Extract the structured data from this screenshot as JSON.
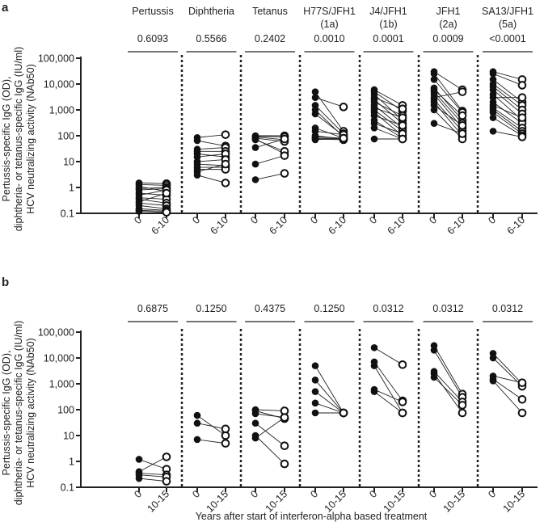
{
  "chart_data": [
    {
      "panel": "a",
      "type": "scatter",
      "ylabel": [
        "Pertussis-specific IgG (OD),",
        "diphtheria- or tetanus-specific IgG (IU/ml)",
        "HCV neutralizing activity (NAb50)"
      ],
      "yscale": "log",
      "ylim": [
        0.1,
        100000
      ],
      "yticks": [
        "100,000",
        "10,000",
        "1,000",
        "100",
        "10",
        "1",
        "0.1"
      ],
      "xticks": [
        "0",
        "6-10"
      ],
      "groups": [
        {
          "title": "Pertussis",
          "subtitle": "",
          "p": "0.6093",
          "pairs": [
            [
              1.5,
              1.4
            ],
            [
              1.3,
              1.2
            ],
            [
              1.1,
              0.7
            ],
            [
              0.9,
              1.0
            ],
            [
              0.8,
              0.9
            ],
            [
              0.6,
              0.5
            ],
            [
              0.5,
              0.8
            ],
            [
              0.4,
              0.35
            ],
            [
              0.35,
              0.25
            ],
            [
              0.28,
              0.6
            ],
            [
              0.25,
              0.2
            ],
            [
              0.2,
              0.15
            ],
            [
              0.15,
              0.13
            ],
            [
              0.13,
              0.12
            ],
            [
              0.12,
              0.11
            ]
          ]
        },
        {
          "title": "Diphtheria",
          "subtitle": "",
          "p": "0.5566",
          "pairs": [
            [
              85,
              110
            ],
            [
              65,
              40
            ],
            [
              30,
              35
            ],
            [
              25,
              25
            ],
            [
              20,
              15
            ],
            [
              15,
              20
            ],
            [
              10,
              12
            ],
            [
              8,
              7
            ],
            [
              6,
              6
            ],
            [
              5,
              5
            ],
            [
              4,
              8
            ],
            [
              3,
              1.5
            ]
          ]
        },
        {
          "title": "Tetanus",
          "subtitle": "",
          "p": "0.2402",
          "pairs": [
            [
              100,
              100
            ],
            [
              95,
              90
            ],
            [
              90,
              70
            ],
            [
              80,
              60
            ],
            [
              75,
              20
            ],
            [
              70,
              25
            ],
            [
              35,
              75
            ],
            [
              8,
              17
            ],
            [
              2,
              3.5
            ]
          ]
        },
        {
          "title": "H77S/JFH1",
          "subtitle": "(1a)",
          "p": "0.0010",
          "pairs": [
            [
              5000,
              150
            ],
            [
              3000,
              1300
            ],
            [
              1500,
              120
            ],
            [
              1000,
              90
            ],
            [
              700,
              100
            ],
            [
              200,
              80
            ],
            [
              150,
              110
            ],
            [
              100,
              75
            ],
            [
              90,
              80
            ],
            [
              80,
              75
            ],
            [
              75,
              70
            ],
            [
              70,
              80
            ]
          ]
        },
        {
          "title": "J4/JFH1",
          "subtitle": "(1b)",
          "p": "0.0001",
          "pairs": [
            [
              6000,
              1500
            ],
            [
              5000,
              900
            ],
            [
              4000,
              400
            ],
            [
              3000,
              1100
            ],
            [
              2500,
              300
            ],
            [
              2000,
              600
            ],
            [
              1500,
              200
            ],
            [
              1200,
              500
            ],
            [
              1000,
              150
            ],
            [
              800,
              100
            ],
            [
              600,
              250
            ],
            [
              400,
              80
            ],
            [
              300,
              120
            ],
            [
              200,
              75
            ],
            [
              75,
              75
            ]
          ]
        },
        {
          "title": "JFH1",
          "subtitle": "(2a)",
          "p": "0.0009",
          "pairs": [
            [
              30000,
              6000
            ],
            [
              25000,
              900
            ],
            [
              15000,
              800
            ],
            [
              7000,
              400
            ],
            [
              6000,
              600
            ],
            [
              5000,
              300
            ],
            [
              4000,
              200
            ],
            [
              3000,
              5000
            ],
            [
              2500,
              150
            ],
            [
              2000,
              100
            ],
            [
              1500,
              250
            ],
            [
              1000,
              75
            ],
            [
              300,
              120
            ]
          ]
        },
        {
          "title": "SA13/JFH1",
          "subtitle": "(5a)",
          "p": "<0.0001",
          "pairs": [
            [
              30000,
              15000
            ],
            [
              25000,
              9000
            ],
            [
              15000,
              2000
            ],
            [
              10000,
              1500
            ],
            [
              8000,
              1000
            ],
            [
              6000,
              700
            ],
            [
              4000,
              400
            ],
            [
              3000,
              3000
            ],
            [
              2000,
              300
            ],
            [
              1500,
              500
            ],
            [
              1200,
              200
            ],
            [
              1000,
              150
            ],
            [
              800,
              120
            ],
            [
              500,
              100
            ],
            [
              150,
              90
            ]
          ]
        }
      ]
    },
    {
      "panel": "b",
      "type": "scatter",
      "ylabel": [
        "Pertussis-specific IgG (OD),",
        "diphtheria- or tetanus-specific IgG (IU/ml)",
        "HCV neutralizing activity (NAb50)"
      ],
      "yscale": "log",
      "ylim": [
        0.1,
        100000
      ],
      "yticks": [
        "100,000",
        "10,000",
        "1,000",
        "100",
        "10",
        "1",
        "0.1"
      ],
      "xticks": [
        "0",
        "10-15"
      ],
      "groups": [
        {
          "title": "",
          "subtitle": "",
          "p": "0.6875",
          "pairs": [
            [
              1.2,
              0.5
            ],
            [
              0.4,
              1.5
            ],
            [
              0.35,
              0.3
            ],
            [
              0.3,
              0.25
            ],
            [
              0.22,
              0.17
            ]
          ]
        },
        {
          "title": "",
          "subtitle": "",
          "p": "0.1250",
          "pairs": [
            [
              60,
              10
            ],
            [
              30,
              18
            ],
            [
              7,
              5
            ]
          ]
        },
        {
          "title": "",
          "subtitle": "",
          "p": "0.4375",
          "pairs": [
            [
              100,
              90
            ],
            [
              90,
              45
            ],
            [
              70,
              50
            ],
            [
              30,
              4
            ],
            [
              10,
              0.8
            ],
            [
              8,
              50
            ]
          ]
        },
        {
          "title": "",
          "subtitle": "",
          "p": "0.1250",
          "pairs": [
            [
              5000,
              75
            ],
            [
              1400,
              75
            ],
            [
              500,
              75
            ],
            [
              180,
              75
            ],
            [
              75,
              75
            ]
          ]
        },
        {
          "title": "",
          "subtitle": "",
          "p": "0.0312",
          "pairs": [
            [
              25000,
              5500
            ],
            [
              7000,
              220
            ],
            [
              5000,
              75
            ],
            [
              600,
              200
            ],
            [
              500,
              75
            ]
          ]
        },
        {
          "title": "",
          "subtitle": "",
          "p": "0.0312",
          "pairs": [
            [
              30000,
              400
            ],
            [
              20000,
              300
            ],
            [
              3000,
              200
            ],
            [
              2500,
              75
            ],
            [
              1800,
              150
            ]
          ]
        },
        {
          "title": "",
          "subtitle": "",
          "p": "0.0312",
          "pairs": [
            [
              15000,
              1000
            ],
            [
              10000,
              800
            ],
            [
              2000,
              1100
            ],
            [
              1500,
              250
            ],
            [
              1300,
              75
            ]
          ]
        }
      ]
    }
  ],
  "panel_labels": [
    "a",
    "b"
  ],
  "xlabel": "Years after start of interferon-alpha based treatment"
}
